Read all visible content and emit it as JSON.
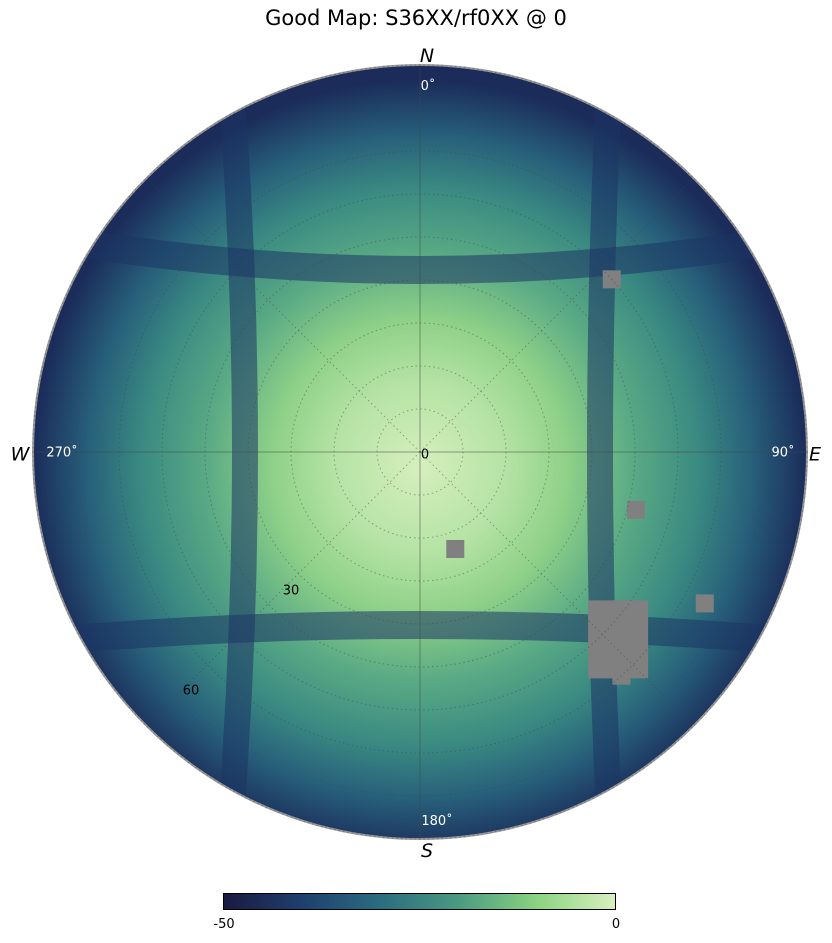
{
  "title": "Good Map: S36XX/rf0XX @ 0",
  "chart_data": {
    "type": "heatmap",
    "projection": "polar-sky",
    "title": "Good Map: S36XX/rf0XX @ 0",
    "cardinal_labels": {
      "north": "N",
      "east": "E",
      "south": "S",
      "west": "W"
    },
    "azimuth_tick_labels": [
      "0˚",
      "90˚",
      "180˚",
      "270˚"
    ],
    "zenith_tick_labels": [
      "0",
      "30",
      "60"
    ],
    "zenith_max_deg": 90,
    "colorbar": {
      "min": -50,
      "max": 0,
      "tick_labels": [
        "-50",
        "0"
      ],
      "colormap": [
        "#1a1a40",
        "#1f3f6e",
        "#2a6d80",
        "#4a9a82",
        "#8ad380",
        "#d8f0c0"
      ]
    },
    "bad_pixel_color": "#808080",
    "grid": true,
    "bad_regions": [
      {
        "az": 132,
        "zen": 62
      },
      {
        "az": 138,
        "zen": 70
      },
      {
        "az": 118,
        "zen": 75
      },
      {
        "az": 105,
        "zen": 52
      },
      {
        "az": 160,
        "zen": 24
      },
      {
        "az": 48,
        "zen": 60
      }
    ]
  }
}
